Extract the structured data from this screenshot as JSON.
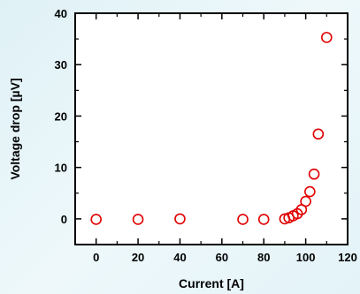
{
  "chart_data": {
    "type": "scatter",
    "title": "",
    "xlabel": "Current [A]",
    "ylabel": "Voltage drop [µV]",
    "xlim": [
      -10,
      120
    ],
    "ylim": [
      -5,
      40
    ],
    "xticks": [
      0,
      20,
      40,
      60,
      80,
      100,
      120
    ],
    "xtick_labels": [
      "0",
      "20",
      "40",
      "60",
      "80",
      "100",
      "120"
    ],
    "yticks": [
      0,
      10,
      20,
      30,
      40
    ],
    "ytick_labels": [
      "0",
      "10",
      "20",
      "30",
      "40"
    ],
    "grid": false,
    "marker": "open-circle",
    "marker_color": "#e00000",
    "series": [
      {
        "points": [
          [
            0,
            -0.1
          ],
          [
            20,
            -0.1
          ],
          [
            40,
            0.0
          ],
          [
            70,
            -0.1
          ],
          [
            80,
            -0.1
          ],
          [
            90,
            0.0
          ],
          [
            92,
            0.2
          ],
          [
            94,
            0.6
          ],
          [
            96,
            1.0
          ],
          [
            98,
            1.8
          ],
          [
            100,
            3.4
          ],
          [
            102,
            5.3
          ],
          [
            104,
            8.7
          ],
          [
            106,
            16.5
          ],
          [
            110,
            35.3
          ]
        ]
      }
    ]
  }
}
